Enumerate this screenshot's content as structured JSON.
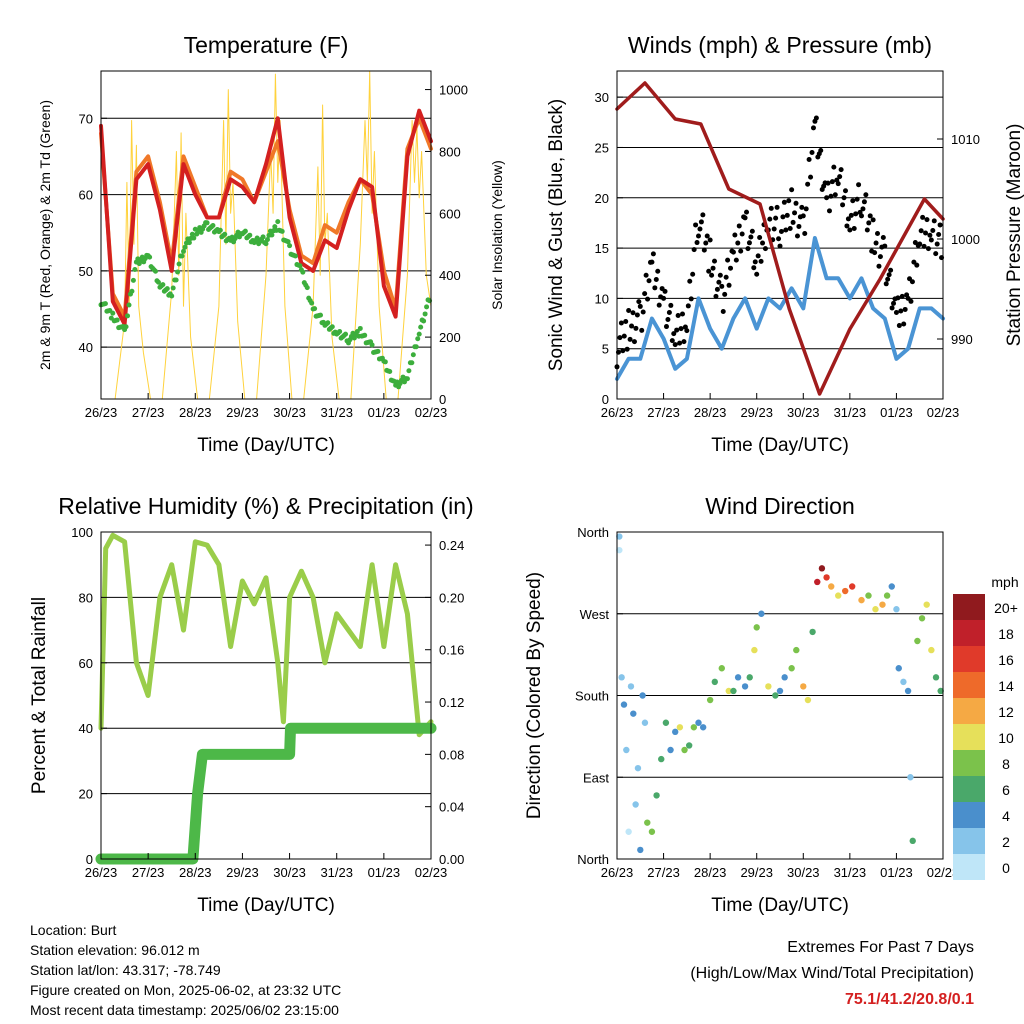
{
  "chart_data": [
    {
      "type": "line",
      "title": "Temperature (F)",
      "xlabel": "Time (Day/UTC)",
      "ylabel": "2m & 9m T (Red, Orange) & 2m Td (Green)",
      "y2label": "Solar Insolation (Yellow)",
      "xlim": [
        0,
        7
      ],
      "ylim": [
        33.2,
        76.2
      ],
      "y2lim": [
        0,
        1060
      ],
      "xticks": [
        "26/23",
        "27/23",
        "28/23",
        "29/23",
        "30/23",
        "31/23",
        "01/23",
        "02/23"
      ],
      "yticks": [
        40,
        50,
        60,
        70
      ],
      "y2ticks": [
        0,
        200,
        400,
        600,
        800,
        1000
      ],
      "grid": [
        40,
        50,
        60,
        70
      ],
      "series": [
        {
          "name": "Solar Insolation",
          "axis": "right",
          "color": "#ffd23c",
          "width": 1,
          "style": "line",
          "x": [
            0,
            0.3,
            0.5,
            0.55,
            0.6,
            0.65,
            0.7,
            0.75,
            0.8,
            0.9,
            1.05,
            1.3,
            1.5,
            1.6,
            1.65,
            1.7,
            1.75,
            1.8,
            1.9,
            2.05,
            2.3,
            2.5,
            2.6,
            2.65,
            2.7,
            2.75,
            2.8,
            2.9,
            3.05,
            3.3,
            3.5,
            3.6,
            3.65,
            3.7,
            3.75,
            3.8,
            3.9,
            4.05,
            4.3,
            4.5,
            4.6,
            4.65,
            4.7,
            4.75,
            4.8,
            4.9,
            5.05,
            5.3,
            5.5,
            5.6,
            5.65,
            5.7,
            5.75,
            5.8,
            5.9,
            6.05,
            6.3,
            6.5,
            6.6,
            6.65,
            6.7,
            6.75,
            6.8,
            6.9,
            7.0
          ],
          "y": [
            0,
            0,
            250,
            700,
            300,
            900,
            500,
            820,
            300,
            150,
            0,
            0,
            350,
            800,
            400,
            860,
            300,
            600,
            200,
            0,
            0,
            300,
            900,
            500,
            1000,
            600,
            700,
            250,
            0,
            0,
            400,
            800,
            600,
            1050,
            700,
            900,
            300,
            0,
            0,
            300,
            750,
            400,
            950,
            500,
            600,
            200,
            0,
            0,
            500,
            900,
            700,
            1060,
            600,
            800,
            300,
            0,
            0,
            400,
            900,
            700,
            880,
            650,
            800,
            400,
            300
          ]
        },
        {
          "name": "2m T",
          "axis": "left",
          "color": "#f07828",
          "width": 4,
          "style": "line",
          "x_start": 0,
          "x_step": 0.25,
          "y": [
            68,
            47,
            44,
            63,
            65,
            59,
            51,
            65,
            61,
            57,
            57,
            63,
            62,
            59,
            63,
            67,
            58,
            52,
            51,
            56,
            55,
            59,
            62,
            60,
            50,
            45,
            66,
            70,
            66
          ]
        },
        {
          "name": "9m T",
          "axis": "left",
          "color": "#d42020",
          "width": 4,
          "style": "line",
          "x_start": 0,
          "x_step": 0.25,
          "y": [
            69,
            46,
            43,
            62,
            64,
            58,
            50,
            64,
            60,
            57,
            57,
            62,
            61,
            59,
            64,
            70,
            57,
            51,
            50,
            54,
            53,
            58,
            62,
            61,
            48,
            44,
            65,
            71,
            67
          ]
        },
        {
          "name": "2m Td",
          "axis": "left",
          "color": "#3cae3c",
          "width": 4,
          "style": "dots",
          "x_start": 0,
          "x_step": 0.25,
          "y": [
            46,
            44,
            42,
            51,
            52,
            48,
            47,
            53,
            55,
            56,
            55,
            54,
            55,
            54,
            54,
            56,
            53,
            50,
            45,
            43,
            42,
            41,
            42,
            40,
            38,
            35,
            36,
            42,
            47
          ]
        }
      ]
    },
    {
      "type": "line",
      "title": "Winds (mph) & Pressure (mb)",
      "xlabel": "Time (Day/UTC)",
      "ylabel": "Sonic Wind & Gust (Blue, Black)",
      "y2label": "Station Pressure (Maroon)",
      "xlim": [
        0,
        7
      ],
      "ylim": [
        0,
        32.6
      ],
      "y2lim": [
        984,
        1016.8
      ],
      "xticks": [
        "26/23",
        "27/23",
        "28/23",
        "29/23",
        "30/23",
        "31/23",
        "01/23",
        "02/23"
      ],
      "yticks": [
        0,
        5,
        10,
        15,
        20,
        25,
        30
      ],
      "y2ticks": [
        990,
        1000,
        1010
      ],
      "grid": [
        5,
        10,
        15,
        20,
        25,
        30
      ],
      "series": [
        {
          "name": "Sonic Wind",
          "axis": "left",
          "color": "#4a94d4",
          "width": 4,
          "style": "line",
          "x_start": 0,
          "x_step": 0.25,
          "y": [
            2,
            4,
            4,
            8,
            6,
            3,
            4,
            10,
            7,
            5,
            8,
            10,
            7,
            10,
            9,
            11,
            9,
            16,
            12,
            12,
            10,
            12,
            9,
            8,
            4,
            5,
            9,
            9,
            8
          ]
        },
        {
          "name": "Gust",
          "axis": "left",
          "color": "#000000",
          "width": 4,
          "style": "dots",
          "x_start": 0,
          "x_step": 0.25,
          "y": [
            5,
            7,
            8,
            13,
            10,
            6,
            8,
            18,
            14,
            10,
            14,
            18,
            13,
            18,
            17,
            19,
            17,
            27,
            20,
            22,
            18,
            20,
            16,
            14,
            8,
            10,
            16,
            17,
            15
          ]
        },
        {
          "name": "Station Pressure",
          "axis": "right",
          "color": "#a01c1c",
          "width": 3.5,
          "style": "line",
          "x": [
            0,
            0.6,
            1.25,
            1.8,
            2.4,
            3.07,
            3.7,
            4.35,
            5.0,
            5.65,
            6.6,
            7.0
          ],
          "y": [
            1013,
            1015.6,
            1012,
            1011.5,
            1005,
            1003.5,
            993,
            984.5,
            991,
            996,
            1004,
            1002
          ]
        }
      ]
    },
    {
      "type": "line",
      "title": "Relative Humidity (%) & Precipitation (in)",
      "xlabel": "Time (Day/UTC)",
      "ylabel": "Percent & Total Rainfall",
      "y2label": "",
      "xlim": [
        0,
        7
      ],
      "ylim": [
        0,
        100
      ],
      "y2lim": [
        0,
        0.25
      ],
      "xticks": [
        "26/23",
        "27/23",
        "28/23",
        "29/23",
        "30/23",
        "31/23",
        "01/23",
        "02/23"
      ],
      "yticks": [
        0,
        20,
        40,
        60,
        80,
        100
      ],
      "y2ticks": [
        "0.00",
        "0.04",
        "0.08",
        "0.12",
        "0.16",
        "0.20",
        "0.24"
      ],
      "grid": [
        20,
        40,
        60,
        80
      ],
      "series": [
        {
          "name": "Relative Humidity",
          "axis": "left",
          "color": "#9acd4a",
          "width": 5,
          "style": "line",
          "x": [
            0,
            0.1,
            0.25,
            0.5,
            0.75,
            1.0,
            1.25,
            1.5,
            1.75,
            2.0,
            2.25,
            2.5,
            2.75,
            3.0,
            3.25,
            3.5,
            3.75,
            3.87,
            4.0,
            4.25,
            4.5,
            4.75,
            5.0,
            5.25,
            5.5,
            5.75,
            6.0,
            6.25,
            6.5,
            6.75,
            7.0
          ],
          "y": [
            40,
            95,
            99,
            97,
            60,
            50,
            80,
            90,
            70,
            97,
            96,
            90,
            65,
            85,
            78,
            86,
            60,
            42,
            80,
            88,
            80,
            60,
            75,
            70,
            65,
            90,
            65,
            90,
            75,
            38,
            42
          ]
        },
        {
          "name": "Total Precipitation",
          "axis": "right",
          "color": "#4db848",
          "width": 11,
          "style": "line",
          "x": [
            0,
            1.95,
            2.05,
            2.15,
            4.0,
            4.02,
            7.0
          ],
          "y": [
            0,
            0,
            0.05,
            0.08,
            0.08,
            0.1,
            0.1
          ]
        }
      ]
    },
    {
      "type": "scatter",
      "title": "Wind Direction",
      "xlabel": "Time (Day/UTC)",
      "ylabel": "Direction (Colored By Speed)",
      "xlim": [
        0,
        7
      ],
      "ylim": [
        0,
        360
      ],
      "xticks": [
        "26/23",
        "27/23",
        "28/23",
        "29/23",
        "30/23",
        "31/23",
        "01/23",
        "02/23"
      ],
      "yticks": [
        {
          "v": 0,
          "label": "North"
        },
        {
          "v": 90,
          "label": "East"
        },
        {
          "v": 180,
          "label": "South"
        },
        {
          "v": 270,
          "label": "West"
        },
        {
          "v": 360,
          "label": "North"
        }
      ],
      "grid": [
        90,
        180,
        270
      ],
      "legend": {
        "title": "mph",
        "labels": [
          "20+",
          "18",
          "16",
          "14",
          "12",
          "10",
          "8",
          "6",
          "4",
          "2",
          "0"
        ],
        "colors": [
          "#901a1e",
          "#c0202a",
          "#e03a2a",
          "#ee6a2a",
          "#f5a944",
          "#e6e05a",
          "#7bc24b",
          "#4aa86a",
          "#4a8fcc",
          "#86c4ea",
          "#bfe6f8"
        ],
        "placement": "right"
      },
      "points": [
        [
          0.05,
          355,
          2
        ],
        [
          0.05,
          340,
          1
        ],
        [
          0.1,
          200,
          3
        ],
        [
          0.15,
          170,
          4
        ],
        [
          0.2,
          120,
          2
        ],
        [
          0.25,
          30,
          1
        ],
        [
          0.3,
          190,
          3
        ],
        [
          0.35,
          160,
          4
        ],
        [
          0.4,
          60,
          2
        ],
        [
          0.45,
          100,
          3
        ],
        [
          0.5,
          10,
          4
        ],
        [
          0.55,
          180,
          5
        ],
        [
          0.6,
          150,
          3
        ],
        [
          0.65,
          40,
          8
        ],
        [
          0.75,
          30,
          9
        ],
        [
          0.85,
          70,
          6
        ],
        [
          0.95,
          110,
          7
        ],
        [
          1.05,
          150,
          6
        ],
        [
          1.15,
          120,
          4
        ],
        [
          1.25,
          140,
          5
        ],
        [
          1.35,
          145,
          10
        ],
        [
          1.45,
          120,
          8
        ],
        [
          1.55,
          125,
          6
        ],
        [
          1.65,
          145,
          9
        ],
        [
          1.75,
          150,
          4
        ],
        [
          1.85,
          145,
          5
        ],
        [
          2.0,
          175,
          8
        ],
        [
          2.1,
          195,
          6
        ],
        [
          2.25,
          210,
          9
        ],
        [
          2.4,
          185,
          10
        ],
        [
          2.5,
          185,
          7
        ],
        [
          2.6,
          200,
          5
        ],
        [
          2.75,
          190,
          4
        ],
        [
          2.85,
          200,
          6
        ],
        [
          2.95,
          230,
          10
        ],
        [
          3.0,
          255,
          8
        ],
        [
          3.1,
          270,
          5
        ],
        [
          3.25,
          190,
          11
        ],
        [
          3.4,
          180,
          7
        ],
        [
          3.5,
          185,
          4
        ],
        [
          3.6,
          200,
          5
        ],
        [
          3.75,
          210,
          9
        ],
        [
          3.85,
          230,
          8
        ],
        [
          4.0,
          190,
          12
        ],
        [
          4.1,
          175,
          10
        ],
        [
          4.2,
          250,
          7
        ],
        [
          4.3,
          305,
          18
        ],
        [
          4.4,
          320,
          21
        ],
        [
          4.5,
          310,
          17
        ],
        [
          4.6,
          300,
          13
        ],
        [
          4.75,
          290,
          11
        ],
        [
          4.9,
          295,
          14
        ],
        [
          5.05,
          300,
          16
        ],
        [
          5.25,
          285,
          12
        ],
        [
          5.4,
          290,
          9
        ],
        [
          5.55,
          275,
          10
        ],
        [
          5.7,
          280,
          12
        ],
        [
          5.8,
          290,
          8
        ],
        [
          5.9,
          300,
          5
        ],
        [
          6.0,
          275,
          3
        ],
        [
          6.05,
          210,
          4
        ],
        [
          6.15,
          195,
          3
        ],
        [
          6.25,
          185,
          5
        ],
        [
          6.3,
          90,
          3
        ],
        [
          6.35,
          20,
          6
        ],
        [
          6.45,
          240,
          8
        ],
        [
          6.55,
          265,
          9
        ],
        [
          6.65,
          280,
          11
        ],
        [
          6.75,
          230,
          10
        ],
        [
          6.85,
          200,
          7
        ],
        [
          6.95,
          185,
          6
        ]
      ]
    }
  ],
  "info": [
    "Location: Burt",
    "Station elevation: 96.012 m",
    "Station lat/lon: 43.317; -78.749",
    "Figure created on Mon, 2025-06-02, at 23:32 UTC",
    "Most recent data timestamp: 2025/06/02 23:15:00"
  ],
  "extremes": {
    "title": "Extremes For Past 7 Days",
    "subtitle": "(High/Low/Max Wind/Total Precipitation)",
    "values": "75.1/41.2/20.8/0.1",
    "color": "#d42020"
  }
}
